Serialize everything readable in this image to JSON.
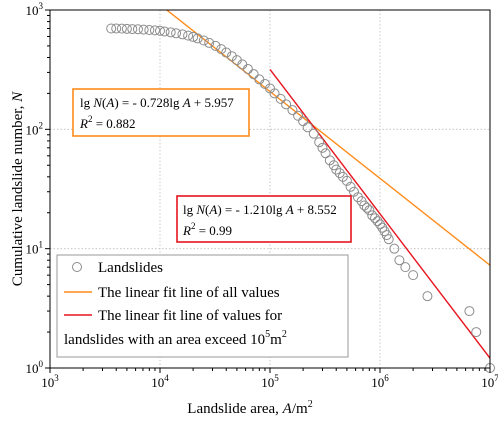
{
  "chart_data": {
    "type": "scatter",
    "xscale": "log",
    "yscale": "log",
    "xlim": [
      1000,
      10000000
    ],
    "ylim": [
      1,
      1000
    ],
    "grid": true,
    "xlabel_prefix": "Landslide area, ",
    "xlabel_var": "A",
    "xlabel_unit": "/m",
    "xlabel_unit_sup": "2",
    "ylabel_prefix": "Cumulative landslide number, ",
    "ylabel_var": "N",
    "x_ticks": [
      {
        "value": 1000,
        "base": "10",
        "exp": "3"
      },
      {
        "value": 10000,
        "base": "10",
        "exp": "4"
      },
      {
        "value": 100000,
        "base": "10",
        "exp": "5"
      },
      {
        "value": 1000000,
        "base": "10",
        "exp": "6"
      },
      {
        "value": 10000000,
        "base": "10",
        "exp": "7"
      }
    ],
    "y_ticks": [
      {
        "value": 1,
        "base": "10",
        "exp": "0"
      },
      {
        "value": 10,
        "base": "10",
        "exp": "1"
      },
      {
        "value": 100,
        "base": "10",
        "exp": "2"
      },
      {
        "value": 1000,
        "base": "10",
        "exp": "3"
      }
    ],
    "series": [
      {
        "name": "Landslides",
        "kind": "scatter",
        "color": "#8c8c8c",
        "x": [
          3600,
          4000,
          4500,
          5000,
          5600,
          6300,
          7100,
          8000,
          9000,
          10000,
          11000,
          12500,
          14000,
          16000,
          18000,
          20000,
          22000,
          25000,
          28000,
          32000,
          36000,
          40000,
          45000,
          50000,
          56000,
          63000,
          71000,
          80000,
          90000,
          100000,
          110000,
          125000,
          140000,
          160000,
          180000,
          200000,
          220000,
          250000,
          280000,
          300000,
          320000,
          350000,
          380000,
          400000,
          430000,
          460000,
          500000,
          540000,
          580000,
          630000,
          680000,
          720000,
          760000,
          800000,
          850000,
          900000,
          950000,
          1000000,
          1050000,
          1100000,
          1150000,
          1200000,
          1350000,
          1500000,
          1700000,
          2000000,
          2700000,
          6500000,
          7500000,
          10000000
        ],
        "y": [
          700,
          700,
          698,
          695,
          692,
          690,
          685,
          680,
          675,
          670,
          660,
          650,
          638,
          625,
          610,
          595,
          578,
          555,
          530,
          500,
          470,
          440,
          410,
          380,
          350,
          320,
          290,
          262,
          240,
          220,
          200,
          180,
          162,
          145,
          130,
          117,
          104,
          92,
          78,
          70,
          63,
          55,
          50,
          46,
          43,
          40,
          37,
          33,
          30,
          27,
          25,
          23,
          22,
          21,
          19,
          18,
          17,
          16,
          15,
          14,
          13,
          12,
          10,
          8,
          7,
          6,
          4,
          3,
          2,
          1
        ]
      },
      {
        "name": "The linear fit line of all values",
        "kind": "line",
        "color": "#ff8c1a",
        "slope": -0.728,
        "intercept": 5.957,
        "x_range": [
          3000,
          10000000
        ]
      },
      {
        "name": "The linear fit line of  values for landslides with an area exceed 10",
        "name_sup": "5",
        "name_tail": "m",
        "name_tail_sup": "2",
        "kind": "line",
        "color": "#e8141e",
        "slope": -1.21,
        "intercept": 8.552,
        "x_range": [
          100000,
          10000000
        ]
      }
    ],
    "legend": {
      "placement": "bottom-left",
      "entries": [
        {
          "label": "Landslides"
        },
        {
          "label": "The linear fit line of all values"
        },
        {
          "label_line1": "The linear fit line of  values for",
          "label_line2": "landslides with an area exceed 10",
          "label_sup": "5",
          "label_tail": "m",
          "label_tail_sup": "2"
        }
      ]
    },
    "annotations": [
      {
        "id": "eq-all",
        "box_color": "#ff8c1a",
        "lg": "lg",
        "N": "N",
        "lp": "(",
        "A1": "A",
        "rp_eq": ") = - 0.728lg",
        "A2": "A",
        "const": " + 5.957",
        "R": "R",
        "R_sup": "2",
        "r2": " = 0.882"
      },
      {
        "id": "eq-large",
        "box_color": "#e8141e",
        "lg": "lg",
        "N": "N",
        "lp": "(",
        "A1": "A",
        "rp_eq": ") = - 1.210lg",
        "A2": "A",
        "const": " + 8.552",
        "R": "R",
        "R_sup": "2",
        "r2": " = 0.99"
      }
    ]
  }
}
